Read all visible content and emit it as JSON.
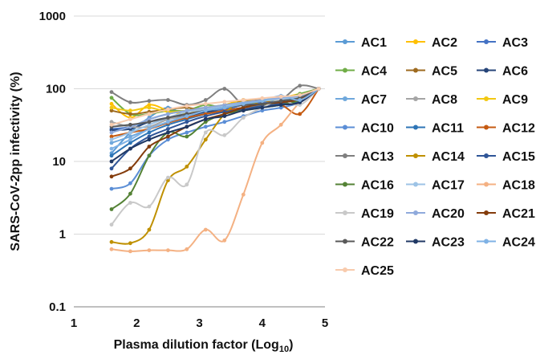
{
  "chart_data": {
    "type": "line",
    "title": "",
    "xlabel_main": "Plasma dilution factor (Log",
    "xlabel_sub": "10",
    "xlabel_end": ")",
    "ylabel": "SARS-CoV-2pp infectivity (%)",
    "x_scale": "linear",
    "y_scale": "log",
    "xlim": [
      1,
      5
    ],
    "ylim": [
      0.1,
      1000
    ],
    "x_ticks": [
      "1",
      "2",
      "3",
      "4",
      "5"
    ],
    "y_ticks": [
      "0.1",
      "1",
      "10",
      "100",
      "1000"
    ],
    "grid": "horizontal",
    "legend_position": "right",
    "x": [
      1.6,
      1.9,
      2.2,
      2.5,
      2.8,
      3.1,
      3.4,
      3.7,
      4.0,
      4.3,
      4.6,
      4.9
    ],
    "series": [
      {
        "name": "AC1",
        "color": "#5B9BD5",
        "values": [
          13,
          25,
          40,
          55,
          42,
          47,
          55,
          62,
          58,
          70,
          80,
          100
        ]
      },
      {
        "name": "AC2",
        "color": "#FFC000",
        "values": [
          62,
          40,
          60,
          50,
          45,
          55,
          60,
          70,
          65,
          75,
          85,
          100
        ]
      },
      {
        "name": "AC3",
        "color": "#4472C4",
        "values": [
          28,
          30,
          38,
          45,
          50,
          55,
          52,
          60,
          65,
          70,
          80,
          100
        ]
      },
      {
        "name": "AC4",
        "color": "#70AD47",
        "values": [
          75,
          45,
          45,
          50,
          50,
          60,
          55,
          65,
          60,
          70,
          85,
          100
        ]
      },
      {
        "name": "AC5",
        "color": "#9E6A1F",
        "values": [
          50,
          45,
          48,
          52,
          55,
          50,
          60,
          65,
          70,
          60,
          80,
          100
        ]
      },
      {
        "name": "AC6",
        "color": "#264478",
        "values": [
          27,
          28,
          35,
          40,
          42,
          48,
          50,
          55,
          60,
          65,
          75,
          100
        ]
      },
      {
        "name": "AC7",
        "color": "#6FA8DC",
        "values": [
          18,
          22,
          28,
          35,
          40,
          45,
          50,
          55,
          60,
          65,
          70,
          100
        ]
      },
      {
        "name": "AC8",
        "color": "#A5A5A5",
        "values": [
          35,
          30,
          30,
          38,
          42,
          50,
          55,
          60,
          62,
          68,
          75,
          100
        ]
      },
      {
        "name": "AC9",
        "color": "#F2C811",
        "values": [
          55,
          50,
          55,
          48,
          50,
          55,
          60,
          65,
          68,
          72,
          80,
          100
        ]
      },
      {
        "name": "AC10",
        "color": "#5B8ED6",
        "values": [
          4.2,
          5,
          12,
          20,
          25,
          30,
          35,
          42,
          50,
          55,
          65,
          100
        ]
      },
      {
        "name": "AC11",
        "color": "#2E75B6",
        "values": [
          12,
          18,
          25,
          32,
          38,
          45,
          50,
          55,
          60,
          68,
          75,
          100
        ]
      },
      {
        "name": "AC12",
        "color": "#C55A11",
        "values": [
          22,
          25,
          28,
          34,
          40,
          45,
          50,
          55,
          60,
          60,
          45,
          100
        ]
      },
      {
        "name": "AC13",
        "color": "#7F7F7F",
        "values": [
          90,
          65,
          68,
          70,
          60,
          70,
          100,
          60,
          60,
          70,
          110,
          100
        ]
      },
      {
        "name": "AC14",
        "color": "#BF9000",
        "values": [
          0.78,
          0.75,
          1.15,
          5.5,
          8.5,
          20,
          45,
          70,
          60,
          65,
          70,
          100
        ]
      },
      {
        "name": "AC15",
        "color": "#2F5597",
        "values": [
          8,
          15,
          22,
          28,
          35,
          42,
          48,
          52,
          58,
          62,
          68,
          100
        ]
      },
      {
        "name": "AC16",
        "color": "#548235",
        "values": [
          2.2,
          3.6,
          12,
          25,
          22,
          35,
          45,
          50,
          55,
          60,
          70,
          100
        ]
      },
      {
        "name": "AC17",
        "color": "#9DC3E6",
        "values": [
          20,
          25,
          32,
          40,
          48,
          52,
          58,
          62,
          68,
          72,
          78,
          100
        ]
      },
      {
        "name": "AC18",
        "color": "#F4B183",
        "values": [
          0.62,
          0.58,
          0.6,
          0.6,
          0.62,
          1.15,
          0.82,
          3.5,
          18,
          32,
          65,
          100
        ]
      },
      {
        "name": "AC19",
        "color": "#C9C9C9",
        "values": [
          1.35,
          2.7,
          2.4,
          6,
          4.8,
          25,
          23,
          40,
          55,
          70,
          60,
          100
        ]
      },
      {
        "name": "AC20",
        "color": "#8FAADC",
        "values": [
          25,
          30,
          38,
          45,
          50,
          55,
          60,
          65,
          70,
          75,
          80,
          100
        ]
      },
      {
        "name": "AC21",
        "color": "#843C0C",
        "values": [
          6.2,
          8,
          16,
          22,
          30,
          38,
          45,
          55,
          62,
          65,
          72,
          100
        ]
      },
      {
        "name": "AC22",
        "color": "#595959",
        "values": [
          30,
          32,
          35,
          40,
          45,
          50,
          55,
          60,
          62,
          68,
          75,
          100
        ]
      },
      {
        "name": "AC23",
        "color": "#203864",
        "values": [
          10,
          15,
          20,
          25,
          30,
          38,
          42,
          50,
          55,
          60,
          65,
          100
        ]
      },
      {
        "name": "AC24",
        "color": "#7FB2E5",
        "values": [
          15,
          20,
          28,
          35,
          42,
          50,
          55,
          62,
          68,
          80,
          70,
          100
        ]
      },
      {
        "name": "AC25",
        "color": "#F8CBAD",
        "values": [
          32,
          38,
          45,
          52,
          58,
          62,
          66,
          70,
          74,
          78,
          82,
          100
        ]
      }
    ]
  }
}
